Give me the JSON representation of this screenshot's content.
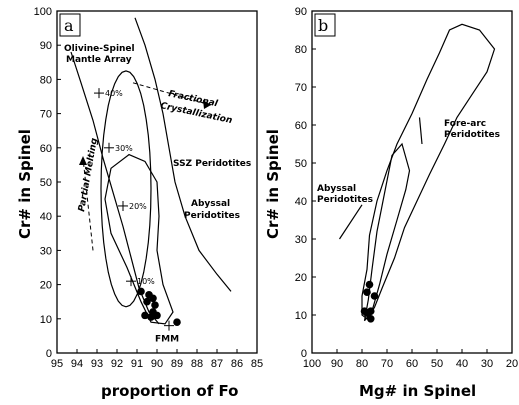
{
  "chart_data": [
    {
      "type": "scatter",
      "panel_label": "a",
      "xlabel": "proportion of Fo",
      "ylabel": "Cr# in Spinel",
      "xlim": [
        95,
        85
      ],
      "ylim": [
        0,
        100
      ],
      "x_ticks": [
        "95",
        "94",
        "93",
        "92",
        "91",
        "90",
        "89",
        "88",
        "87",
        "86",
        "85"
      ],
      "y_ticks": [
        "0",
        "10",
        "20",
        "30",
        "40",
        "50",
        "60",
        "70",
        "80",
        "90",
        "100"
      ],
      "points": [
        {
          "x": 90.8,
          "y": 18
        },
        {
          "x": 90.5,
          "y": 15
        },
        {
          "x": 90.2,
          "y": 16
        },
        {
          "x": 90.4,
          "y": 17
        },
        {
          "x": 90.1,
          "y": 14
        },
        {
          "x": 90.6,
          "y": 11
        },
        {
          "x": 90.3,
          "y": 10.5
        },
        {
          "x": 90.0,
          "y": 11
        },
        {
          "x": 90.2,
          "y": 12
        },
        {
          "x": 89.0,
          "y": 9
        }
      ],
      "melting_marks": [
        {
          "x": 92.9,
          "y": 76,
          "label": "40%"
        },
        {
          "x": 92.4,
          "y": 60,
          "label": "30%"
        },
        {
          "x": 91.7,
          "y": 43,
          "label": "20%"
        },
        {
          "x": 91.3,
          "y": 21,
          "label": "10%"
        },
        {
          "x": 89.4,
          "y": 8,
          "label": "FMM"
        }
      ],
      "annotations": {
        "array": [
          "Olivine-Spinel",
          "Mantle Array"
        ],
        "fractional": [
          "Fractional",
          "Crystallization"
        ],
        "ssz": "SSZ Peridotites",
        "abyssal": [
          "Abyssal",
          "Peridotites"
        ],
        "partial": "Partial Melting"
      }
    },
    {
      "type": "scatter",
      "panel_label": "b",
      "xlabel": "Mg# in Spinel",
      "ylabel": "Cr# in Spinel",
      "xlim": [
        100,
        20
      ],
      "ylim": [
        0,
        90
      ],
      "x_ticks": [
        "100",
        "90",
        "80",
        "70",
        "60",
        "50",
        "40",
        "30",
        "20"
      ],
      "y_ticks": [
        "0",
        "10",
        "20",
        "30",
        "40",
        "50",
        "60",
        "70",
        "80",
        "90"
      ],
      "points": [
        {
          "x": 77,
          "y": 18
        },
        {
          "x": 78,
          "y": 16
        },
        {
          "x": 75,
          "y": 15
        },
        {
          "x": 79,
          "y": 11
        },
        {
          "x": 78,
          "y": 10.5
        },
        {
          "x": 76.5,
          "y": 11
        },
        {
          "x": 77.5,
          "y": 10.5
        },
        {
          "x": 76.5,
          "y": 9
        }
      ],
      "annotations": {
        "forearc": [
          "Fore-arc",
          "Peridotites"
        ],
        "abyssal": [
          "Abyssal",
          "Peridotites"
        ]
      }
    }
  ]
}
